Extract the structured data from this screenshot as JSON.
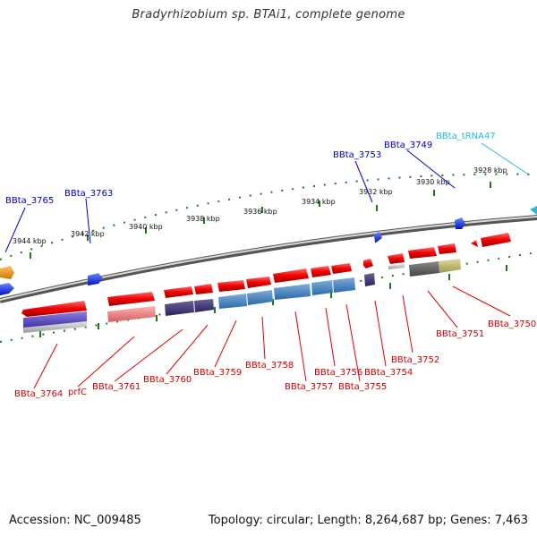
{
  "title": "Bradyrhizobium sp. BTAi1, complete genome",
  "accession": "Accession: NC_009485",
  "topology": "Topology: circular; Length: 8,264,687 bp; Genes: 7,463",
  "colors": {
    "forward": "#e00000",
    "reverse": "#0000cc",
    "trna": "#22bbdd",
    "backbone": "#777777",
    "tick": "#1a7a1a"
  },
  "kbp_labels": [
    "3944 kbp",
    "3942 kbp",
    "3940 kbp",
    "3938 kbp",
    "3936 kbp",
    "3934 kbp",
    "3932 kbp",
    "3930 kbp",
    "3928 kbp"
  ],
  "upper_labels": [
    "BBta_3765",
    "BBta_3763",
    "BBta_3753",
    "BBta_3749",
    "BBta_tRNA47"
  ],
  "lower_labels": [
    "BBta_3764",
    "prfC",
    "BBta_3761",
    "BBta_3760",
    "BBta_3759",
    "BBta_3758",
    "BBta_3757",
    "BBta_3756",
    "BBta_3755",
    "BBta_3754",
    "BBta_3752",
    "BBta_3751",
    "BBta_3750"
  ]
}
